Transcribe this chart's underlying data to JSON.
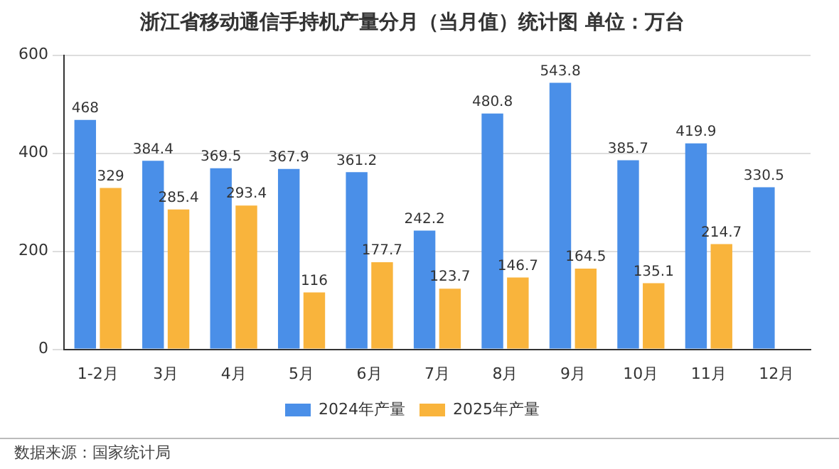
{
  "chart_data": {
    "type": "bar",
    "title": "浙江省移动通信手持机产量分月（当月值）统计图 单位：万台",
    "categories": [
      "1-2月",
      "3月",
      "4月",
      "5月",
      "6月",
      "7月",
      "8月",
      "9月",
      "10月",
      "11月",
      "12月"
    ],
    "series": [
      {
        "name": "2024年产量",
        "color": "#4a8fe8",
        "values": [
          468,
          384.4,
          369.5,
          367.9,
          361.2,
          242.2,
          480.8,
          543.8,
          385.7,
          419.9,
          330.5
        ]
      },
      {
        "name": "2025年产量",
        "color": "#f9b43c",
        "values": [
          329,
          285.4,
          293.4,
          116,
          177.7,
          123.7,
          146.7,
          164.5,
          135.1,
          214.7,
          null
        ]
      }
    ],
    "ylim": [
      0,
      600
    ],
    "yticks": [
      0,
      200,
      400,
      600
    ],
    "grid": "y",
    "legend": "bottom",
    "data_labels": true,
    "annotations": [
      "数据来源：国家统计局"
    ]
  }
}
